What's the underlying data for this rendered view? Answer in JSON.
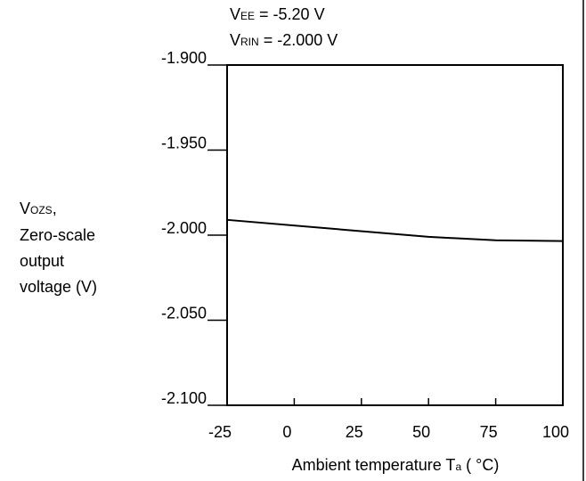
{
  "chart_data": {
    "type": "line",
    "annotations": [
      {
        "main": "V",
        "sub": "EE",
        "rest": " = -5.20 V"
      },
      {
        "main": "V",
        "sub": "RIN",
        "rest": " = -2.000 V"
      }
    ],
    "y_label": {
      "main": "V",
      "sub": "OZS",
      "rest": ",",
      "lines": [
        "Zero-scale",
        "output",
        "voltage (V)"
      ]
    },
    "x_label": {
      "main": "Ambient temperature T",
      "sub": "a",
      "rest": " ( °C)"
    },
    "x": [
      -25,
      50,
      75,
      100
    ],
    "series": [
      {
        "color": "#000000",
        "values": [
          -1.991,
          -2.001,
          -2.003,
          -2.0035
        ]
      }
    ],
    "xlim": [
      -25,
      100
    ],
    "xticks": [
      -25,
      0,
      25,
      50,
      75,
      100
    ],
    "ylim": [
      -2.1,
      -1.9
    ],
    "yticks": [
      {
        "value": -1.9,
        "label": "-1.900"
      },
      {
        "value": -1.95,
        "label": "-1.950"
      },
      {
        "value": -2.0,
        "label": "-2.000"
      },
      {
        "value": -2.05,
        "label": "-2.050"
      },
      {
        "value": -2.1,
        "label": "-2.100"
      }
    ]
  }
}
